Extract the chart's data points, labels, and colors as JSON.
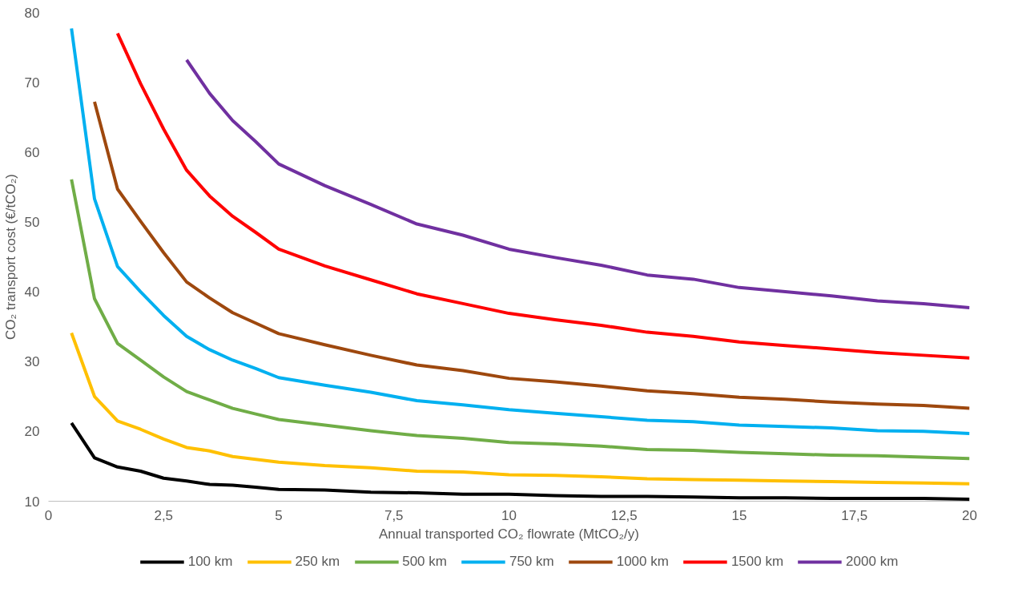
{
  "chart_data": {
    "type": "line",
    "xlabel": "Annual transported CO₂ flowrate (MtCO₂/y)",
    "ylabel": "CO₂ transport cost (€/tCO₂)",
    "x": [
      0.5,
      1,
      1.5,
      2,
      2.5,
      3,
      3.5,
      4,
      4.5,
      5,
      6,
      7,
      8,
      9,
      10,
      11,
      12,
      13,
      14,
      15,
      16,
      17,
      18,
      19,
      20
    ],
    "xlim": [
      0,
      20
    ],
    "xticks": [
      0,
      {
        "value": 2.5,
        "label": "2,5"
      },
      5,
      {
        "value": 7.5,
        "label": "7,5"
      },
      10,
      {
        "value": 12.5,
        "label": "12,5"
      },
      15,
      {
        "value": 17.5,
        "label": "17,5"
      },
      20
    ],
    "ylim": [
      10,
      80
    ],
    "yticks": [
      10,
      20,
      30,
      40,
      50,
      60,
      70,
      80
    ],
    "grid": false,
    "legend": "bottom",
    "marker": "none",
    "line_style": "solid",
    "series": [
      {
        "name": "100 km",
        "color": "#000000",
        "values": [
          21.2,
          16.2,
          14.9,
          14.3,
          13.3,
          12.9,
          12.4,
          12.3,
          12.0,
          11.7,
          11.6,
          11.3,
          11.2,
          11.0,
          11.0,
          10.8,
          10.7,
          10.7,
          10.6,
          10.5,
          10.5,
          10.4,
          10.4,
          10.4,
          10.3
        ]
      },
      {
        "name": "250 km",
        "color": "#ffc000",
        "values": [
          34.1,
          25.0,
          21.5,
          20.3,
          18.9,
          17.7,
          17.2,
          16.4,
          16.0,
          15.6,
          15.1,
          14.8,
          14.3,
          14.2,
          13.8,
          13.7,
          13.5,
          13.2,
          13.1,
          13.0,
          12.9,
          12.8,
          12.7,
          12.6,
          12.5
        ]
      },
      {
        "name": "500 km",
        "color": "#70ad47",
        "values": [
          56.1,
          39.0,
          32.6,
          30.2,
          27.8,
          25.7,
          24.5,
          23.3,
          22.5,
          21.7,
          20.9,
          20.1,
          19.4,
          19.0,
          18.4,
          18.2,
          17.9,
          17.4,
          17.3,
          17.0,
          16.8,
          16.6,
          16.5,
          16.3,
          16.1
        ]
      },
      {
        "name": "750 km",
        "color": "#00b0f0",
        "values": [
          77.7,
          53.3,
          43.6,
          40.0,
          36.6,
          33.6,
          31.7,
          30.2,
          29.0,
          27.7,
          26.6,
          25.6,
          24.4,
          23.8,
          23.1,
          22.6,
          22.1,
          21.6,
          21.4,
          20.9,
          20.7,
          20.5,
          20.1,
          20.0,
          19.7
        ]
      },
      {
        "name": "1000 km",
        "color": "#9e480e",
        "values": [
          null,
          67.2,
          54.7,
          50.1,
          45.6,
          41.4,
          39.1,
          37.0,
          35.5,
          34.0,
          32.4,
          30.9,
          29.5,
          28.7,
          27.6,
          27.1,
          26.5,
          25.8,
          25.4,
          24.9,
          24.6,
          24.2,
          23.9,
          23.7,
          23.3
        ]
      },
      {
        "name": "1500 km",
        "color": "#ff0000",
        "values": [
          null,
          null,
          77.0,
          69.8,
          63.3,
          57.4,
          53.7,
          50.8,
          48.5,
          46.1,
          43.7,
          41.7,
          39.7,
          38.3,
          36.9,
          36.0,
          35.2,
          34.2,
          33.6,
          32.8,
          32.3,
          31.8,
          31.3,
          30.9,
          30.5
        ]
      },
      {
        "name": "2000 km",
        "color": "#7030a0",
        "values": [
          null,
          null,
          null,
          null,
          null,
          73.2,
          68.4,
          64.5,
          61.5,
          58.3,
          55.2,
          52.5,
          49.7,
          48.1,
          46.1,
          44.9,
          43.8,
          42.4,
          41.8,
          40.6,
          40.0,
          39.4,
          38.7,
          38.3,
          37.7
        ]
      }
    ]
  }
}
